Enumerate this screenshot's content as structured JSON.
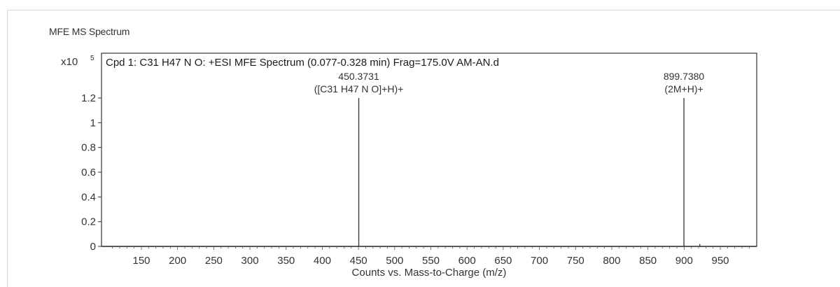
{
  "panel_title": "MFE MS Spectrum",
  "chart_data": {
    "type": "bar",
    "title": "Cpd 1: C31 H47 N O: +ESI MFE Spectrum (0.077-0.328 min) Frag=175.0V AM-AN.d",
    "xlabel": "Counts vs. Mass-to-Charge (m/z)",
    "ylabel": "",
    "y_multiplier": "x10",
    "y_exponent": "5",
    "xlim": [
      100,
      1000
    ],
    "ylim": [
      0,
      1.4
    ],
    "x_ticks": [
      150,
      200,
      250,
      300,
      350,
      400,
      450,
      500,
      550,
      600,
      650,
      700,
      750,
      800,
      850,
      900,
      950
    ],
    "y_ticks": [
      {
        "value": 0,
        "label": "0"
      },
      {
        "value": 0.2,
        "label": "0.2"
      },
      {
        "value": 0.4,
        "label": "0.4"
      },
      {
        "value": 0.6,
        "label": "0.6"
      },
      {
        "value": 0.8,
        "label": "0.8"
      },
      {
        "value": 1.0,
        "label": "1"
      },
      {
        "value": 1.2,
        "label": "1.2"
      }
    ],
    "grid": false,
    "peaks": [
      {
        "mz": 450.3731,
        "intensity": 1.2,
        "label": "450.3731",
        "annotation": "([C31 H47 N O]+H)+"
      },
      {
        "mz": 899.738,
        "intensity": 1.2,
        "label": "899.7380",
        "annotation": "(2M+H)+"
      },
      {
        "mz": 921.7,
        "intensity": 0.02,
        "label": "",
        "annotation": ""
      }
    ],
    "colors": {
      "axis": "#333333",
      "peak": "#333333",
      "frame": "#333333"
    }
  }
}
